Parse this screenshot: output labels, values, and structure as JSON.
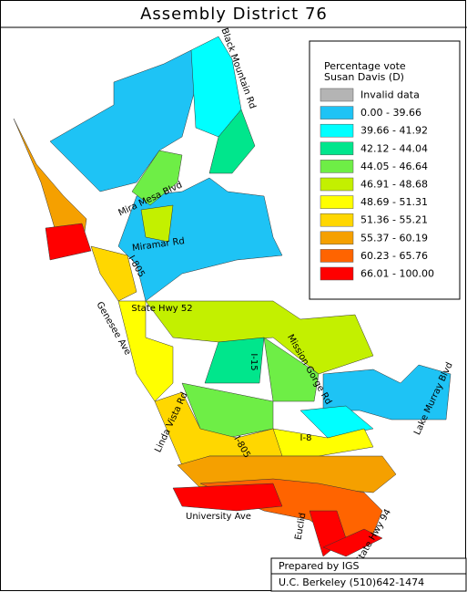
{
  "title": "Assembly District 76",
  "legend": {
    "title": [
      "Percentage vote",
      "Susan Davis (D)"
    ],
    "items": [
      {
        "label": "Invalid data",
        "color": "#b4b4b4"
      },
      {
        "label": "0.00 - 39.66",
        "color": "#1ec3f5"
      },
      {
        "label": "39.66 - 41.92",
        "color": "#00ffff"
      },
      {
        "label": "42.12 - 44.04",
        "color": "#00e68c"
      },
      {
        "label": "44.05 - 46.64",
        "color": "#6eee46"
      },
      {
        "label": "46.91 - 48.68",
        "color": "#c3f000"
      },
      {
        "label": "48.69 - 51.31",
        "color": "#ffff00"
      },
      {
        "label": "51.36 - 55.21",
        "color": "#ffd700"
      },
      {
        "label": "55.37 - 60.19",
        "color": "#f5a000"
      },
      {
        "label": "60.23 - 65.76",
        "color": "#ff6400"
      },
      {
        "label": "66.01 - 100.00",
        "color": "#ff0000"
      }
    ]
  },
  "roads": [
    "Black Mountain Rd",
    "Mira Mesa Blvd",
    "Miramar Rd",
    "I-805",
    "State Hwy 52",
    "Genesee Ave",
    "I-15",
    "Mission Gorge Rd",
    "Linda Vista Rd",
    "I-805",
    "I-8",
    "Lake Murray Blvd",
    "University Ave",
    "Euclid",
    "State Hwy 94"
  ],
  "credits": [
    "Prepared by IGS",
    "U.C. Berkeley (510)642-1474"
  ]
}
